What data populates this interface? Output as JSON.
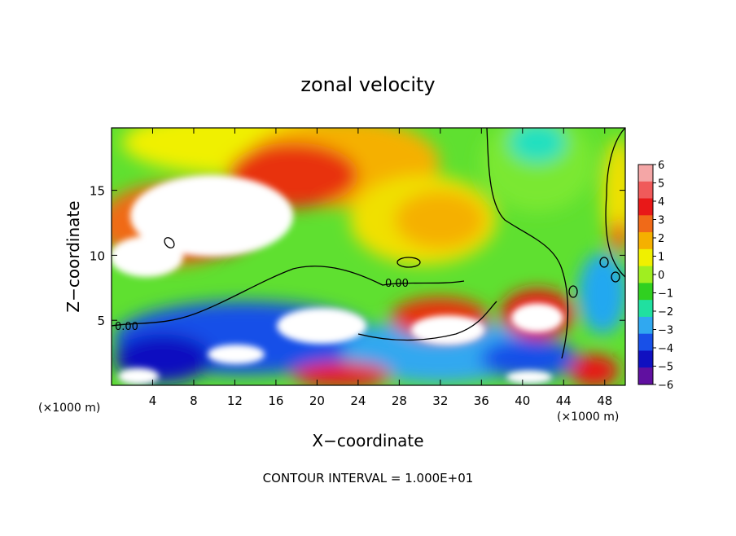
{
  "chart_data": {
    "type": "heatmap",
    "title": "zonal velocity",
    "xlabel": "X−coordinate",
    "ylabel": "Z−coordinate",
    "x_unit_left": "(×1000 m)",
    "x_unit_right": "(×1000 m)",
    "footer": "CONTOUR INTERVAL = 1.000E+01",
    "xlim": [
      0,
      50
    ],
    "ylim": [
      0,
      19.8
    ],
    "x_ticks": [
      4,
      8,
      12,
      16,
      20,
      24,
      28,
      32,
      36,
      40,
      44,
      48
    ],
    "y_ticks": [
      5,
      10,
      15
    ],
    "colorbar": {
      "levels": [
        6,
        5,
        4,
        3,
        2,
        1,
        0,
        -1,
        -2,
        -3,
        -4,
        -5,
        -6
      ],
      "colors": [
        "#f4a6a6",
        "#f05a5a",
        "#e81818",
        "#f06a18",
        "#f5b000",
        "#f0f000",
        "#a0ee20",
        "#30d020",
        "#20e0a0",
        "#30a8f0",
        "#1850e8",
        "#1010c0",
        "#6010a0"
      ]
    },
    "contour_labels": [
      {
        "text": "0.00",
        "x": 2,
        "y": 4.6
      },
      {
        "text": "0.00",
        "x": 28.3,
        "y": 8.0
      }
    ]
  }
}
